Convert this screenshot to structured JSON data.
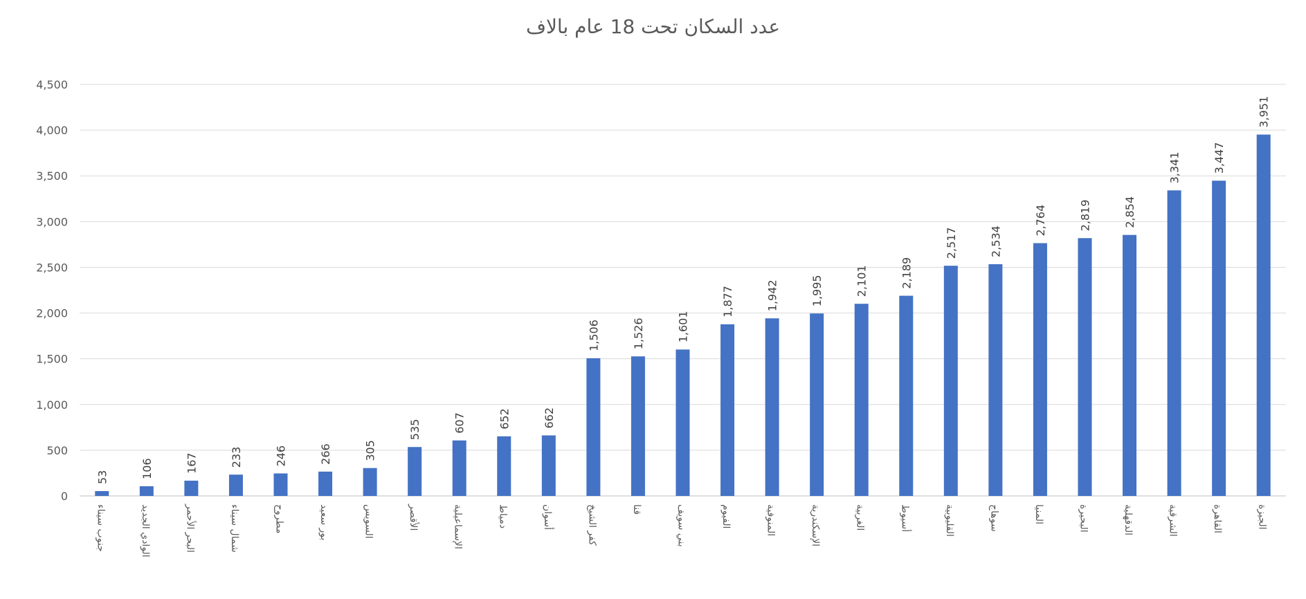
{
  "chart_data": {
    "type": "bar",
    "title": "عدد السكان تحت 18 عام بالاف",
    "xlabel": "",
    "ylabel": "",
    "ylim": [
      0,
      4500
    ],
    "yticks": [
      0,
      500,
      1000,
      1500,
      2000,
      2500,
      3000,
      3500,
      4000,
      4500
    ],
    "ytick_labels": [
      "0",
      "500",
      "1,000",
      "1,500",
      "2,000",
      "2,500",
      "3,000",
      "3,500",
      "4,000",
      "4,500"
    ],
    "grid": true,
    "legend": "none",
    "bar_color": "#4472C4",
    "categories": [
      "جنوب سيناء",
      "الوادي الجديد",
      "البحر الأحمر",
      "شمال سيناء",
      "مطروح",
      "بور سعيد",
      "السويس",
      "الأقصر",
      "الإسماعيلية",
      "دمياط",
      "أسوان",
      "كفر الشيخ",
      "قنا",
      "بني سويف",
      "الفيوم",
      "المنوفية",
      "الإسكندرية",
      "الغربية",
      "أسيوط",
      "القليوبية",
      "سوهاج",
      "المنيا",
      "البحيرة",
      "الدقهلية",
      "الشرقية",
      "القاهرة",
      "الجيزة"
    ],
    "values": [
      53,
      106,
      167,
      233,
      246,
      266,
      305,
      535,
      607,
      652,
      662,
      1506,
      1526,
      1601,
      1877,
      1942,
      1995,
      2101,
      2189,
      2517,
      2534,
      2764,
      2819,
      2854,
      3341,
      3447,
      3951
    ],
    "value_labels": [
      "53",
      "106",
      "167",
      "233",
      "246",
      "266",
      "305",
      "535",
      "607",
      "652",
      "662",
      "1,506",
      "1,526",
      "1,601",
      "1,877",
      "1,942",
      "1,995",
      "2,101",
      "2,189",
      "2,517",
      "2,534",
      "2,764",
      "2,819",
      "2,854",
      "3,341",
      "3,447",
      "3,951"
    ]
  }
}
